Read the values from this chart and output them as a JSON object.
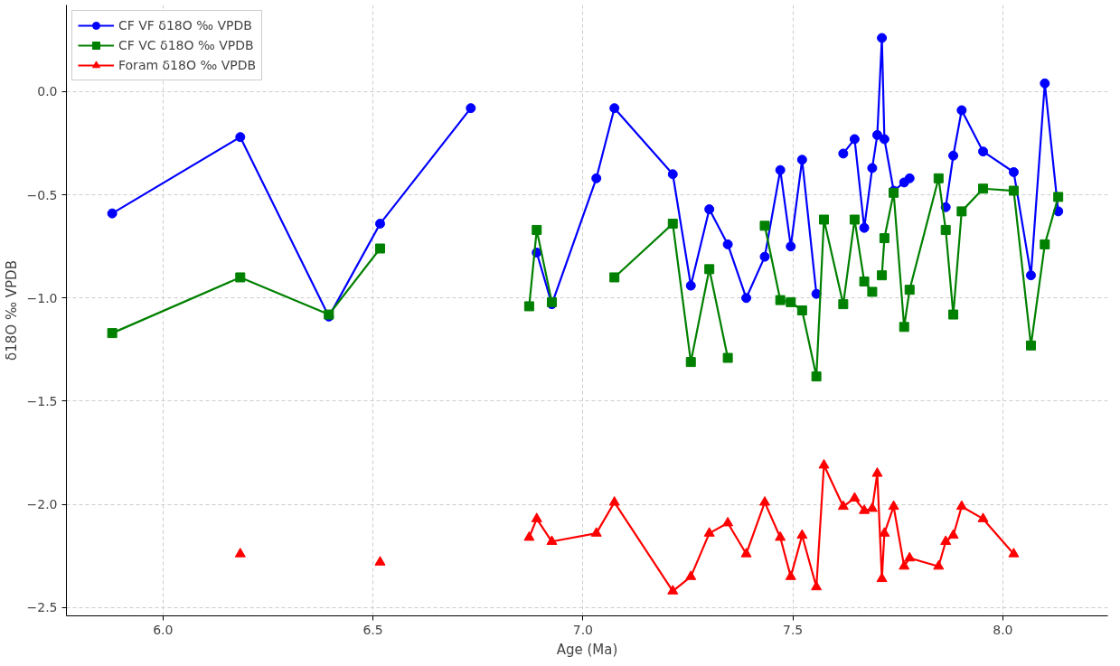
{
  "chart_data": {
    "type": "line",
    "xlabel": "Age (Ma)",
    "ylabel": "δ18O ‰ VPDB",
    "x": [
      5.879,
      6.184,
      6.395,
      6.517,
      6.733,
      6.872,
      6.89,
      6.926,
      7.032,
      7.075,
      7.214,
      7.257,
      7.301,
      7.345,
      7.389,
      7.433,
      7.47,
      7.495,
      7.522,
      7.556,
      7.574,
      7.62,
      7.647,
      7.67,
      7.689,
      7.701,
      7.712,
      7.718,
      7.74,
      7.765,
      7.778,
      7.847,
      7.864,
      7.882,
      7.902,
      7.953,
      8.026,
      8.067,
      8.1,
      8.132
    ],
    "series": [
      {
        "name": "CF VF δ18O ‰ VPDB",
        "color": "#0000ff",
        "marker": "circle",
        "values": [
          -0.59,
          -0.22,
          -1.09,
          -0.64,
          -0.08,
          null,
          -0.78,
          -1.03,
          -0.42,
          -0.08,
          -0.4,
          -0.94,
          -0.57,
          -0.74,
          -1.0,
          -0.8,
          -0.38,
          -0.75,
          -0.33,
          -0.98,
          null,
          -0.3,
          -0.23,
          -0.66,
          -0.37,
          -0.21,
          0.26,
          -0.23,
          -0.48,
          -0.44,
          -0.42,
          null,
          -0.56,
          -0.31,
          -0.09,
          -0.29,
          -0.39,
          -0.89,
          0.04,
          -0.58
        ]
      },
      {
        "name": "CF VC δ18O ‰ VPDB",
        "color": "#008000",
        "marker": "square",
        "values": [
          -1.17,
          -0.9,
          -1.08,
          -0.76,
          null,
          -1.04,
          -0.67,
          -1.02,
          null,
          -0.9,
          -0.64,
          -1.31,
          -0.86,
          -1.29,
          null,
          -0.65,
          -1.01,
          -1.02,
          -1.06,
          -1.38,
          -0.62,
          -1.03,
          -0.62,
          -0.92,
          -0.97,
          null,
          -0.89,
          -0.71,
          -0.49,
          -1.14,
          -0.96,
          -0.42,
          -0.67,
          -1.08,
          -0.58,
          -0.47,
          -0.48,
          -1.23,
          -0.74,
          -0.51
        ]
      },
      {
        "name": "Foram δ18O ‰ VPDB",
        "color": "#ff0000",
        "marker": "triangle",
        "values": [
          null,
          -2.24,
          null,
          -2.28,
          null,
          -2.16,
          -2.07,
          -2.18,
          -2.14,
          -1.99,
          -2.42,
          -2.35,
          -2.14,
          -2.09,
          -2.24,
          -1.99,
          -2.16,
          -2.35,
          -2.15,
          -2.4,
          -1.81,
          -2.01,
          -1.97,
          -2.03,
          -2.02,
          -1.85,
          -2.36,
          -2.14,
          -2.01,
          -2.3,
          -2.26,
          -2.3,
          -2.18,
          -2.15,
          -2.01,
          -2.07,
          -2.24,
          null,
          null,
          null
        ]
      }
    ],
    "xlim": [
      5.77,
      8.25
    ],
    "ylim": [
      -2.54,
      0.42
    ],
    "xticks": [
      {
        "value": 6,
        "label": "6.0"
      },
      {
        "value": 6.5,
        "label": "6.5"
      },
      {
        "value": 7,
        "label": "7.0"
      },
      {
        "value": 7.5,
        "label": "7.5"
      },
      {
        "value": 8,
        "label": "8.0"
      }
    ],
    "yticks": [
      {
        "value": -2.5,
        "label": "−2.5"
      },
      {
        "value": -2,
        "label": "−2.0"
      },
      {
        "value": -1.5,
        "label": "−1.5"
      },
      {
        "value": -1,
        "label": "−1.0"
      },
      {
        "value": -0.5,
        "label": "−0.5"
      },
      {
        "value": 0,
        "label": "0.0"
      }
    ],
    "grid": true,
    "legend": "top left",
    "line_style": "solid"
  }
}
